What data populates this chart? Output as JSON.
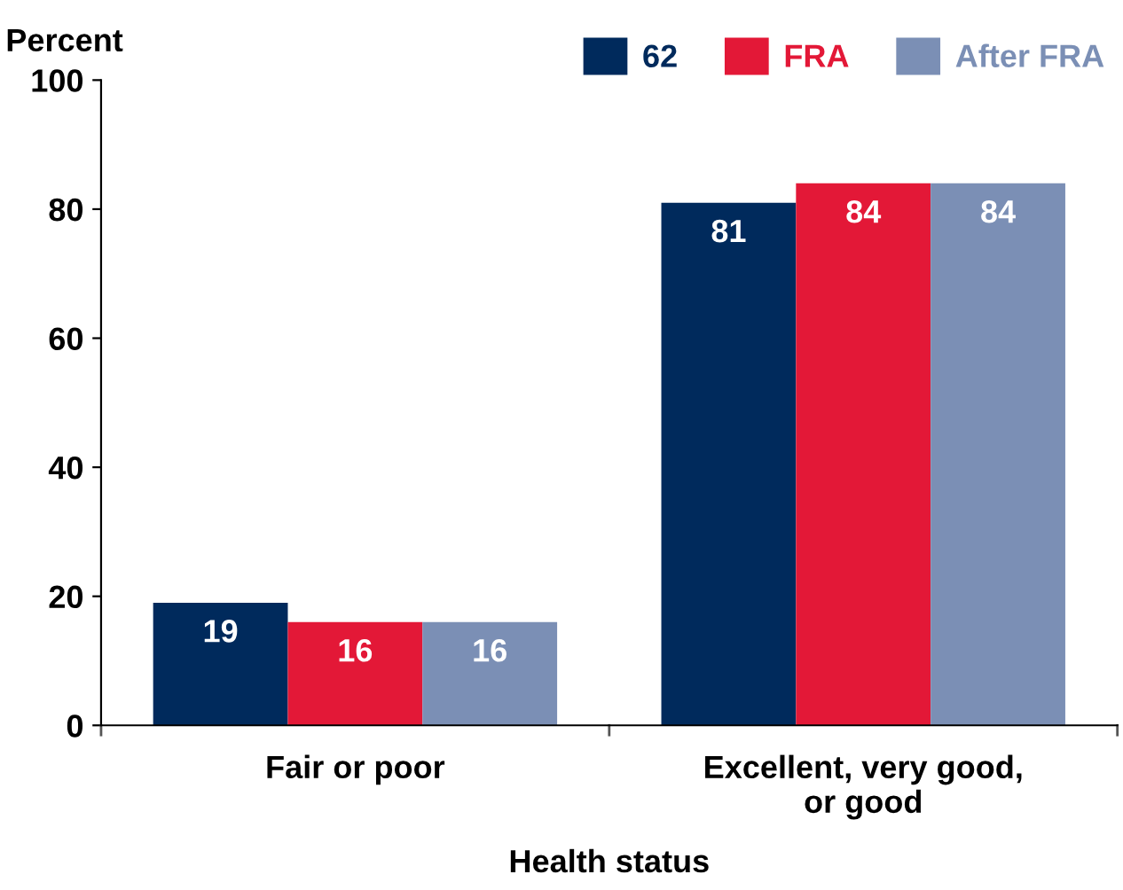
{
  "chart_data": {
    "type": "bar",
    "ylabel": "Percent",
    "xlabel": "Health status",
    "categories": [
      "Fair or poor",
      "Excellent, very good,\nor good"
    ],
    "series": [
      {
        "name": "62",
        "color": "#002a5c",
        "values": [
          19,
          81
        ]
      },
      {
        "name": "FRA",
        "color": "#e31837",
        "values": [
          16,
          84
        ]
      },
      {
        "name": "After FRA",
        "color": "#7b8fb5",
        "values": [
          16,
          84
        ]
      }
    ],
    "ylim": [
      0,
      100
    ],
    "yticks": [
      0,
      20,
      40,
      60,
      80,
      100
    ],
    "grid": false,
    "legend": "top right",
    "data_labels": true
  }
}
